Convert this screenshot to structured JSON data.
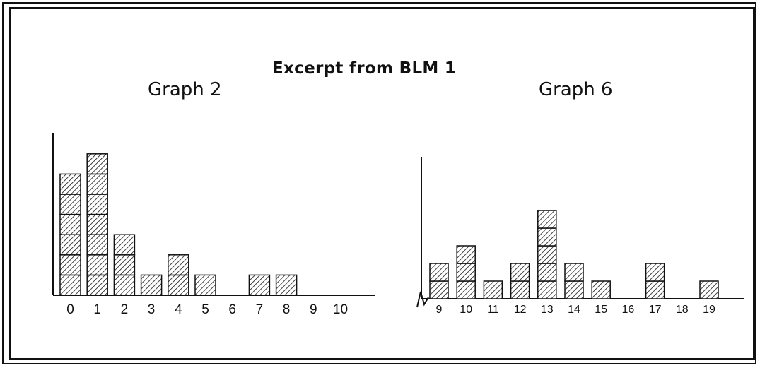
{
  "page_title": "Excerpt from BLM 1",
  "chart_data": [
    {
      "type": "bar",
      "title": "Graph 2",
      "xlabel": "",
      "ylabel": "",
      "categories": [
        "0",
        "1",
        "2",
        "3",
        "4",
        "5",
        "6",
        "7",
        "8",
        "9",
        "10"
      ],
      "values": [
        6,
        7,
        3,
        1,
        2,
        1,
        0,
        1,
        1,
        0,
        0
      ],
      "style": "stacked hatched unit blocks",
      "grid": false
    },
    {
      "type": "bar",
      "title": "Graph 6",
      "xlabel": "",
      "ylabel": "",
      "categories": [
        "9",
        "10",
        "11",
        "12",
        "13",
        "14",
        "15",
        "16",
        "17",
        "18",
        "19"
      ],
      "values": [
        2,
        3,
        1,
        2,
        5,
        2,
        1,
        0,
        2,
        0,
        1
      ],
      "style": "stacked hatched unit blocks",
      "axis_break": true,
      "grid": false
    }
  ]
}
